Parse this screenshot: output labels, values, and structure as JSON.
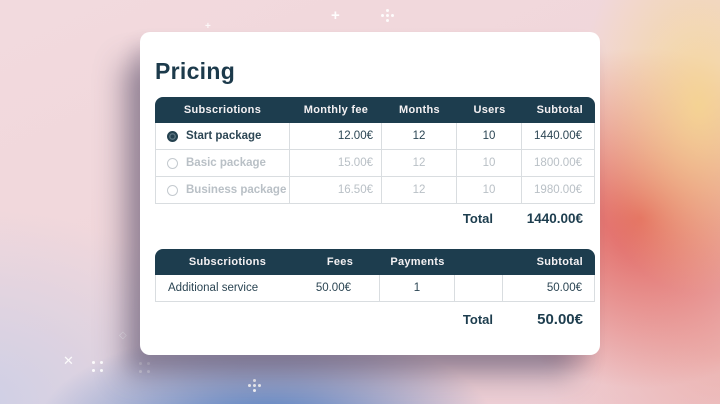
{
  "page": {
    "title": "Pricing"
  },
  "colors": {
    "header_bg": "#1d3d4e",
    "header_text": "#f4f1f3",
    "active_text": "#2c4654",
    "muted_text": "#b9c0c6",
    "border": "#d9dde0",
    "accent_red": "#df5048",
    "accent_blue": "#3470be"
  },
  "pricing_table": {
    "columns": [
      "Subscriotions",
      "Monthly fee",
      "Months",
      "Users",
      "Subtotal"
    ],
    "rows": [
      {
        "name": "Start package",
        "selected": true,
        "monthly_fee": "12.00€",
        "months": "12",
        "users": "10",
        "subtotal": "1440.00€"
      },
      {
        "name": "Basic package",
        "selected": false,
        "monthly_fee": "15.00€",
        "months": "12",
        "users": "10",
        "subtotal": "1800.00€"
      },
      {
        "name": "Business package",
        "selected": false,
        "monthly_fee": "16.50€",
        "months": "12",
        "users": "10",
        "subtotal": "1980.00€"
      }
    ],
    "total_label": "Total",
    "total_value": "1440.00€"
  },
  "services_table": {
    "columns": [
      "Subscriotions",
      "Fees",
      "Payments",
      "",
      "Subtotal"
    ],
    "rows": [
      {
        "name": "Additional service",
        "fees": "50.00€",
        "payments": "1",
        "extra": "",
        "subtotal": "50.00€"
      }
    ],
    "total_label": "Total",
    "total_value": "50.00€"
  }
}
